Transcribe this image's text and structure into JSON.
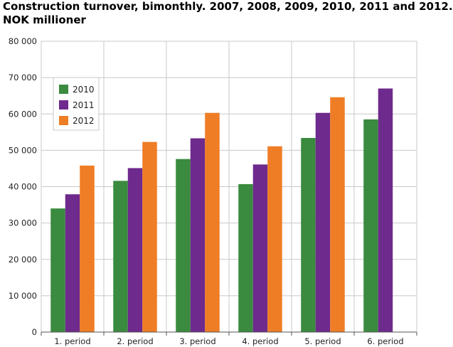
{
  "title_line1": "Construction turnover, bimonthly. 2007, 2008, 2009, 2010, 2011 and 2012.",
  "title_line2": "NOK millioner",
  "chart_data": {
    "type": "bar",
    "title": "Construction turnover, bimonthly. 2007, 2008, 2009, 2010, 2011 and 2012. NOK millioner",
    "categories": [
      "1. period",
      "2. period",
      "3. period",
      "4. period",
      "5. period",
      "6. period"
    ],
    "series": [
      {
        "name": "2010",
        "color": "#3a8a3f",
        "values": [
          34000,
          41600,
          47600,
          40700,
          53400,
          58500
        ]
      },
      {
        "name": "2011",
        "color": "#6e2a8c",
        "values": [
          37900,
          45100,
          53300,
          46100,
          60300,
          67000
        ]
      },
      {
        "name": "2012",
        "color": "#ef7d25",
        "values": [
          45800,
          52300,
          60300,
          51100,
          64600,
          null
        ]
      }
    ],
    "ylim": [
      0,
      80000
    ],
    "yticks": [
      "0",
      "10 000",
      "20 000",
      "30 000",
      "40 000",
      "50 000",
      "60 000",
      "70 000",
      "80 000"
    ],
    "xlabel": "",
    "ylabel": "",
    "grid": true,
    "legend_position": "top-left"
  }
}
